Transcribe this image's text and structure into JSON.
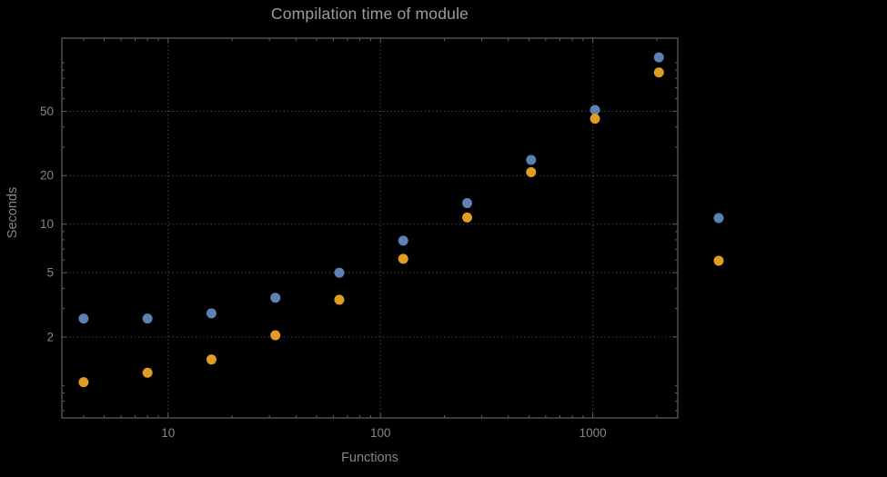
{
  "page": {
    "background": "#000000"
  },
  "chart_data": {
    "type": "scatter",
    "title": "Compilation time of module",
    "xlabel": "Functions",
    "ylabel": "Seconds",
    "xscale": "log",
    "yscale": "log",
    "xlim": [
      3.16,
      2512
    ],
    "ylim": [
      0.63,
      142
    ],
    "grid": true,
    "legend_position": "right-outside",
    "x": [
      4,
      8,
      16,
      32,
      64,
      128,
      256,
      512,
      1024,
      2048
    ],
    "series": [
      {
        "name": "",
        "color": "#5e81b5",
        "values": [
          2.6,
          2.6,
          2.8,
          3.5,
          5.0,
          7.9,
          13.5,
          25,
          51,
          108
        ]
      },
      {
        "name": "",
        "color": "#e19c24",
        "values": [
          1.05,
          1.2,
          1.45,
          2.05,
          3.4,
          6.1,
          11,
          21,
          45,
          87
        ]
      }
    ],
    "xticks": {
      "values": [
        10,
        100,
        1000
      ],
      "labels": [
        "10",
        "100",
        "1000"
      ]
    },
    "yticks": {
      "values": [
        2,
        5,
        10,
        20,
        50
      ],
      "labels": [
        "2",
        "5",
        "10",
        "20",
        "50"
      ]
    },
    "colors": {
      "background": "#000000",
      "frame": "#606060",
      "grid": "#565656",
      "title": "#9c9c9c",
      "tick_label": "#858585",
      "axis_label": "#858585"
    }
  }
}
